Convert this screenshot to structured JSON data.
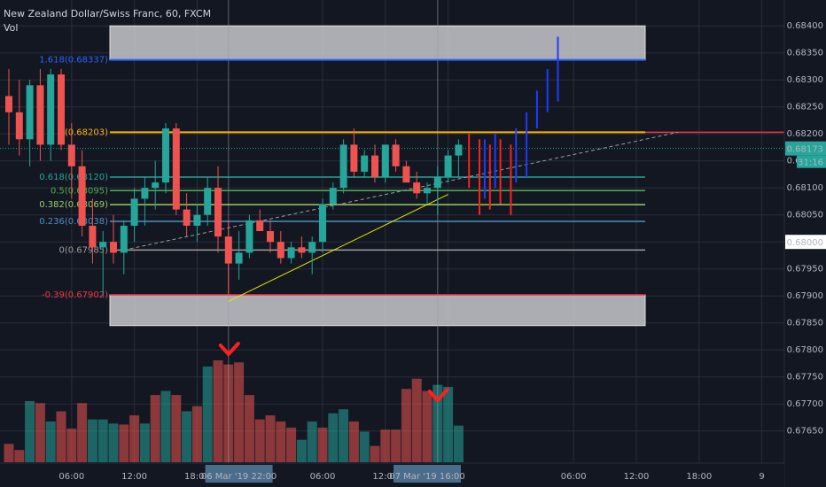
{
  "header": {
    "symbol_title": "New Zealand Dollar/Swiss Franc, 60, FXCM",
    "indicator": "Vol"
  },
  "colors": {
    "background": "#131722",
    "grid": "#2a2e39",
    "up": "#26a69a",
    "down": "#ef5350",
    "vol_up": "#26a69a",
    "vol_down": "#ef5350",
    "fib_1": "#ffb300",
    "fib_0618": "#26a69a",
    "fib_05": "#4caf50",
    "fib_0382": "#9ccc65",
    "fib_0236": "#4a90c2",
    "fib_0": "#9e9e9e",
    "fib_neg039": "#f23645",
    "fib_1618": "#2962ff",
    "projection_up": "#1e3cff",
    "projection_down": "#ff1f1f",
    "last_price": "#26a69a",
    "red_level": "#f23645",
    "trendline": "#e8e600",
    "arrow": "#ff1f1f"
  },
  "chart_data": {
    "type": "candlestick",
    "title": "New Zealand Dollar/Swiss Franc, 60, FXCM",
    "ylim": [
      0.6762,
      0.6842
    ],
    "y_ticks": [
      "0.68400",
      "0.68350",
      "0.68300",
      "0.68250",
      "0.68200",
      "0.68150",
      "0.68100",
      "0.68050",
      "0.68000",
      "0.67950",
      "0.67900",
      "0.67850",
      "0.67800",
      "0.67750",
      "0.67700",
      "0.67650"
    ],
    "x_ticks": [
      "06:00",
      "12:00",
      "18:00",
      "06:00",
      "12:00",
      "8",
      "06:00",
      "12:00",
      "18:00",
      "9"
    ],
    "x_tick_positions": [
      6,
      12,
      18,
      30,
      36,
      42,
      54,
      60,
      66,
      72
    ],
    "crosshair_labels": [
      {
        "text": "06 Mar '19   22:00",
        "x": 22
      },
      {
        "text": "07 Mar '19   16:00",
        "x": 40
      }
    ],
    "last_price": {
      "value": 0.68173,
      "label": "0.68173",
      "countdown": "31:16"
    },
    "price_box_right": {
      "value": 0.68,
      "label": "0.68000"
    },
    "candles": [
      {
        "t": 0,
        "o": 0.6827,
        "h": 0.6832,
        "l": 0.6818,
        "c": 0.6824
      },
      {
        "t": 1,
        "o": 0.6824,
        "h": 0.683,
        "l": 0.6816,
        "c": 0.6819
      },
      {
        "t": 2,
        "o": 0.6819,
        "h": 0.683,
        "l": 0.6814,
        "c": 0.6829
      },
      {
        "t": 3,
        "o": 0.6829,
        "h": 0.6832,
        "l": 0.6815,
        "c": 0.6818
      },
      {
        "t": 4,
        "o": 0.6818,
        "h": 0.6832,
        "l": 0.6815,
        "c": 0.6831
      },
      {
        "t": 5,
        "o": 0.6831,
        "h": 0.6832,
        "l": 0.6817,
        "c": 0.6818
      },
      {
        "t": 6,
        "o": 0.6818,
        "h": 0.6822,
        "l": 0.6808,
        "c": 0.6814
      },
      {
        "t": 7,
        "o": 0.6814,
        "h": 0.6817,
        "l": 0.6801,
        "c": 0.6803
      },
      {
        "t": 8,
        "o": 0.6803,
        "h": 0.6808,
        "l": 0.6796,
        "c": 0.6799
      },
      {
        "t": 9,
        "o": 0.6799,
        "h": 0.6802,
        "l": 0.679,
        "c": 0.68
      },
      {
        "t": 10,
        "o": 0.68,
        "h": 0.6805,
        "l": 0.6796,
        "c": 0.6798
      },
      {
        "t": 11,
        "o": 0.6798,
        "h": 0.6804,
        "l": 0.6794,
        "c": 0.6803
      },
      {
        "t": 12,
        "o": 0.6803,
        "h": 0.681,
        "l": 0.68,
        "c": 0.6808
      },
      {
        "t": 13,
        "o": 0.6808,
        "h": 0.6812,
        "l": 0.6803,
        "c": 0.681
      },
      {
        "t": 14,
        "o": 0.681,
        "h": 0.6815,
        "l": 0.6806,
        "c": 0.6811
      },
      {
        "t": 15,
        "o": 0.6811,
        "h": 0.6822,
        "l": 0.6809,
        "c": 0.6821
      },
      {
        "t": 16,
        "o": 0.6821,
        "h": 0.6822,
        "l": 0.6805,
        "c": 0.6806
      },
      {
        "t": 17,
        "o": 0.6806,
        "h": 0.6809,
        "l": 0.6801,
        "c": 0.6803
      },
      {
        "t": 18,
        "o": 0.6803,
        "h": 0.6807,
        "l": 0.68,
        "c": 0.6805
      },
      {
        "t": 19,
        "o": 0.6805,
        "h": 0.6812,
        "l": 0.6803,
        "c": 0.681
      },
      {
        "t": 20,
        "o": 0.681,
        "h": 0.6814,
        "l": 0.6798,
        "c": 0.6801
      },
      {
        "t": 21,
        "o": 0.6801,
        "h": 0.6804,
        "l": 0.679,
        "c": 0.6796
      },
      {
        "t": 22,
        "o": 0.6796,
        "h": 0.6802,
        "l": 0.6793,
        "c": 0.6798
      },
      {
        "t": 23,
        "o": 0.6798,
        "h": 0.6805,
        "l": 0.6797,
        "c": 0.6804
      },
      {
        "t": 24,
        "o": 0.6804,
        "h": 0.6806,
        "l": 0.6802,
        "c": 0.6802
      },
      {
        "t": 25,
        "o": 0.6802,
        "h": 0.6804,
        "l": 0.6798,
        "c": 0.68
      },
      {
        "t": 26,
        "o": 0.68,
        "h": 0.6802,
        "l": 0.6796,
        "c": 0.6797
      },
      {
        "t": 27,
        "o": 0.6797,
        "h": 0.68,
        "l": 0.6796,
        "c": 0.6799
      },
      {
        "t": 28,
        "o": 0.6799,
        "h": 0.6801,
        "l": 0.6797,
        "c": 0.6798
      },
      {
        "t": 29,
        "o": 0.6798,
        "h": 0.6801,
        "l": 0.6794,
        "c": 0.68
      },
      {
        "t": 30,
        "o": 0.68,
        "h": 0.6808,
        "l": 0.6798,
        "c": 0.6807
      },
      {
        "t": 31,
        "o": 0.6807,
        "h": 0.6811,
        "l": 0.6806,
        "c": 0.681
      },
      {
        "t": 32,
        "o": 0.681,
        "h": 0.6819,
        "l": 0.6809,
        "c": 0.6818
      },
      {
        "t": 33,
        "o": 0.6818,
        "h": 0.6821,
        "l": 0.6812,
        "c": 0.6813
      },
      {
        "t": 34,
        "o": 0.6813,
        "h": 0.6817,
        "l": 0.6812,
        "c": 0.6816
      },
      {
        "t": 35,
        "o": 0.6816,
        "h": 0.6818,
        "l": 0.6811,
        "c": 0.6812
      },
      {
        "t": 36,
        "o": 0.6812,
        "h": 0.6818,
        "l": 0.6811,
        "c": 0.6818
      },
      {
        "t": 37,
        "o": 0.6818,
        "h": 0.6819,
        "l": 0.6813,
        "c": 0.6814
      },
      {
        "t": 38,
        "o": 0.6814,
        "h": 0.6815,
        "l": 0.6811,
        "c": 0.6811
      },
      {
        "t": 39,
        "o": 0.6811,
        "h": 0.6813,
        "l": 0.6808,
        "c": 0.6809
      },
      {
        "t": 40,
        "o": 0.6809,
        "h": 0.6811,
        "l": 0.6807,
        "c": 0.681
      },
      {
        "t": 41,
        "o": 0.681,
        "h": 0.6814,
        "l": 0.6805,
        "c": 0.6812
      },
      {
        "t": 42,
        "o": 0.6812,
        "h": 0.6817,
        "l": 0.6811,
        "c": 0.6816
      },
      {
        "t": 43,
        "o": 0.6816,
        "h": 0.6819,
        "l": 0.6812,
        "c": 0.6818
      }
    ],
    "volume_ylim": [
      0,
      100
    ],
    "volume": [
      {
        "t": 0,
        "v": 18,
        "up": false
      },
      {
        "t": 1,
        "v": 12,
        "up": false
      },
      {
        "t": 2,
        "v": 60,
        "up": true
      },
      {
        "t": 3,
        "v": 58,
        "up": false
      },
      {
        "t": 4,
        "v": 40,
        "up": true
      },
      {
        "t": 5,
        "v": 50,
        "up": false
      },
      {
        "t": 6,
        "v": 33,
        "up": false
      },
      {
        "t": 7,
        "v": 58,
        "up": false
      },
      {
        "t": 8,
        "v": 42,
        "up": true
      },
      {
        "t": 9,
        "v": 42,
        "up": true
      },
      {
        "t": 10,
        "v": 38,
        "up": true
      },
      {
        "t": 11,
        "v": 37,
        "up": false
      },
      {
        "t": 12,
        "v": 46,
        "up": false
      },
      {
        "t": 13,
        "v": 38,
        "up": true
      },
      {
        "t": 14,
        "v": 66,
        "up": false
      },
      {
        "t": 15,
        "v": 70,
        "up": true
      },
      {
        "t": 16,
        "v": 66,
        "up": false
      },
      {
        "t": 17,
        "v": 50,
        "up": true
      },
      {
        "t": 18,
        "v": 55,
        "up": false
      },
      {
        "t": 19,
        "v": 94,
        "up": true
      },
      {
        "t": 20,
        "v": 100,
        "up": false
      },
      {
        "t": 21,
        "v": 96,
        "up": false
      },
      {
        "t": 22,
        "v": 98,
        "up": false
      },
      {
        "t": 23,
        "v": 66,
        "up": false
      },
      {
        "t": 24,
        "v": 42,
        "up": false
      },
      {
        "t": 25,
        "v": 46,
        "up": false
      },
      {
        "t": 26,
        "v": 40,
        "up": false
      },
      {
        "t": 27,
        "v": 34,
        "up": false
      },
      {
        "t": 28,
        "v": 22,
        "up": true
      },
      {
        "t": 29,
        "v": 40,
        "up": true
      },
      {
        "t": 30,
        "v": 34,
        "up": false
      },
      {
        "t": 31,
        "v": 48,
        "up": true
      },
      {
        "t": 32,
        "v": 52,
        "up": true
      },
      {
        "t": 33,
        "v": 40,
        "up": false
      },
      {
        "t": 34,
        "v": 30,
        "up": true
      },
      {
        "t": 35,
        "v": 16,
        "up": false
      },
      {
        "t": 36,
        "v": 32,
        "up": false
      },
      {
        "t": 37,
        "v": 32,
        "up": false
      },
      {
        "t": 38,
        "v": 72,
        "up": false
      },
      {
        "t": 39,
        "v": 82,
        "up": false
      },
      {
        "t": 40,
        "v": 70,
        "up": false
      },
      {
        "t": 41,
        "v": 76,
        "up": true
      },
      {
        "t": 42,
        "v": 74,
        "up": true
      },
      {
        "t": 43,
        "v": 36,
        "up": true
      }
    ],
    "fib_levels": [
      {
        "label": "1.618(0.68337)",
        "value": 0.68337,
        "color_key": "fib_1618"
      },
      {
        "label": "1(0.68203)",
        "value": 0.68203,
        "color_key": "fib_1"
      },
      {
        "label": "0.618(0.68120)",
        "value": 0.6812,
        "color_key": "fib_0618"
      },
      {
        "label": "0.5(0.68095)",
        "value": 0.68095,
        "color_key": "fib_05"
      },
      {
        "label": "0.382(0.68069)",
        "value": 0.68069,
        "color_key": "fib_0382"
      },
      {
        "label": "0.236(0.68038)",
        "value": 0.68038,
        "color_key": "fib_0236"
      },
      {
        "label": "0(0.67985)",
        "value": 0.67985,
        "color_key": "fib_0"
      },
      {
        "label": "-0.39(0.67902)",
        "value": 0.67902,
        "color_key": "fib_neg039"
      }
    ],
    "zones": [
      {
        "top": 0.684,
        "bottom": 0.68337
      },
      {
        "top": 0.67902,
        "bottom": 0.67845
      }
    ],
    "projection_bars": [
      {
        "t": 44,
        "h": 0.682,
        "l": 0.681,
        "color_key": "projection_down"
      },
      {
        "t": 45,
        "h": 0.6819,
        "l": 0.6805,
        "color_key": "projection_down"
      },
      {
        "t": 46,
        "h": 0.6818,
        "l": 0.6806,
        "color_key": "projection_down"
      },
      {
        "t": 47,
        "h": 0.6819,
        "l": 0.6807,
        "color_key": "projection_down"
      },
      {
        "t": 48,
        "h": 0.6818,
        "l": 0.6805,
        "color_key": "projection_down"
      },
      {
        "t": 45.5,
        "h": 0.6819,
        "l": 0.6808,
        "color_key": "projection_up"
      },
      {
        "t": 46.5,
        "h": 0.682,
        "l": 0.681,
        "color_key": "projection_up"
      },
      {
        "t": 48.5,
        "h": 0.6821,
        "l": 0.6811,
        "color_key": "projection_up"
      },
      {
        "t": 49.5,
        "h": 0.6824,
        "l": 0.6812,
        "color_key": "projection_up"
      },
      {
        "t": 50.5,
        "h": 0.6828,
        "l": 0.6821,
        "color_key": "projection_up"
      },
      {
        "t": 51.5,
        "h": 0.6832,
        "l": 0.6824,
        "color_key": "projection_up"
      },
      {
        "t": 52.5,
        "h": 0.6838,
        "l": 0.6826,
        "color_key": "projection_up"
      }
    ],
    "trendlines": [
      {
        "t1": 21,
        "p1": 0.6789,
        "t2": 42,
        "p2": 0.68088,
        "color_key": "trendline",
        "dashed": false
      },
      {
        "t1": 11,
        "p1": 0.67985,
        "t2": 64,
        "p2": 0.68203,
        "color_key": "fib_0",
        "dashed": true
      }
    ],
    "vertical_markers": [
      21,
      41
    ],
    "volume_arrows": [
      21,
      41
    ],
    "red_level": 0.68203
  }
}
